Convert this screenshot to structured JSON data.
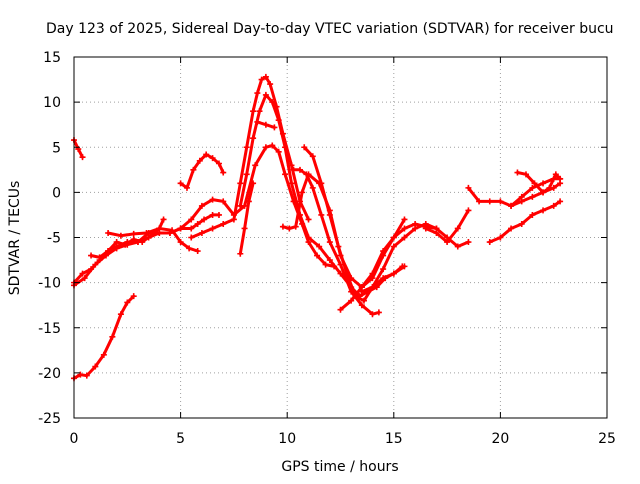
{
  "chart_data": {
    "type": "line",
    "title": "Day 123 of 2025, Sidereal Day-to-day VTEC variation (SDTVAR) for receiver bucu",
    "xlabel": "GPS time / hours",
    "ylabel": "SDTVAR / TECUs",
    "xlim": [
      0,
      25
    ],
    "ylim": [
      -25,
      15
    ],
    "xticks": [
      0,
      5,
      10,
      15,
      20,
      25
    ],
    "yticks": [
      15,
      10,
      5,
      0,
      -5,
      -10,
      -15,
      -20,
      -25
    ],
    "grid": true,
    "color": "#ff0000",
    "series": [
      {
        "name": "s1",
        "x": [
          0.0,
          0.2,
          0.4
        ],
        "y": [
          5.8,
          4.8,
          3.9
        ]
      },
      {
        "name": "s2",
        "x": [
          0.0,
          0.3,
          0.6,
          1.0,
          1.4,
          1.8,
          2.2,
          2.5,
          2.8
        ],
        "y": [
          -20.6,
          -20.2,
          -20.3,
          -19.3,
          -18.0,
          -16.0,
          -13.5,
          -12.2,
          -11.5
        ]
      },
      {
        "name": "s3",
        "x": [
          0.0,
          0.4,
          0.8,
          1.2,
          1.6,
          2.0,
          2.5,
          3.0,
          3.5,
          4.0,
          4.5,
          5.0,
          5.5,
          5.8,
          6.1,
          6.5,
          6.8
        ],
        "y": [
          -10.0,
          -9.0,
          -8.5,
          -7.5,
          -6.5,
          -6.0,
          -5.5,
          -5.5,
          -4.5,
          -4.5,
          -4.5,
          -4.0,
          -4.0,
          -3.5,
          -3.0,
          -2.5,
          -2.5
        ]
      },
      {
        "name": "s4",
        "x": [
          0.0,
          0.5,
          1.0,
          1.5,
          2.0,
          2.5,
          3.0,
          3.5,
          4.0
        ],
        "y": [
          -10.3,
          -9.5,
          -8.0,
          -7.0,
          -6.2,
          -5.8,
          -5.5,
          -5.0,
          -4.5
        ]
      },
      {
        "name": "s5",
        "x": [
          0.8,
          1.2,
          1.6,
          2.0,
          2.4,
          2.8,
          3.2,
          3.6,
          4.0,
          4.2
        ],
        "y": [
          -7.0,
          -7.2,
          -6.5,
          -5.5,
          -5.8,
          -5.2,
          -5.5,
          -4.8,
          -4.0,
          -3.0
        ]
      },
      {
        "name": "s6",
        "x": [
          1.6,
          2.2,
          2.8,
          3.4,
          4.0,
          4.6,
          5.0,
          5.4,
          5.8
        ],
        "y": [
          -4.5,
          -4.8,
          -4.6,
          -4.5,
          -4.0,
          -4.2,
          -5.5,
          -6.2,
          -6.5
        ]
      },
      {
        "name": "s7",
        "x": [
          5.0,
          5.3,
          5.6,
          5.9,
          6.2,
          6.5,
          6.8,
          7.0
        ],
        "y": [
          1.0,
          0.5,
          2.5,
          3.5,
          4.2,
          3.8,
          3.2,
          2.2
        ]
      },
      {
        "name": "s8",
        "x": [
          4.5,
          5.0,
          5.5,
          6.0,
          6.5,
          7.0,
          7.5,
          8.0,
          8.5,
          9.0,
          9.3,
          9.6,
          9.9,
          10.3,
          10.7,
          11.0,
          11.4,
          11.8,
          12.2
        ],
        "y": [
          -4.5,
          -4.0,
          -3.0,
          -1.5,
          -0.8,
          -1.0,
          -2.5,
          -1.5,
          3.0,
          5.0,
          5.2,
          4.5,
          2.0,
          -1.0,
          -3.5,
          -5.5,
          -7.0,
          -8.0,
          -8.2
        ]
      },
      {
        "name": "s9",
        "x": [
          5.5,
          6.0,
          6.5,
          7.0,
          7.5,
          7.8,
          8.1,
          8.4,
          8.6,
          8.8,
          9.0,
          9.2,
          9.5,
          9.8,
          10.2,
          10.6,
          11.0
        ],
        "y": [
          -5.0,
          -4.5,
          -4.0,
          -3.5,
          -3.0,
          1.0,
          5.0,
          9.0,
          11.0,
          12.5,
          12.8,
          12.0,
          9.5,
          6.5,
          3.0,
          -1.0,
          -3.0
        ]
      },
      {
        "name": "s10",
        "x": [
          7.8,
          8.1,
          8.4,
          8.7,
          9.0,
          9.3,
          9.6,
          9.9,
          10.2,
          10.6,
          11.0,
          11.5,
          12.0,
          12.5,
          13.0,
          13.4,
          13.8,
          14.2,
          14.6,
          15.0,
          15.4
        ],
        "y": [
          -1.5,
          2.0,
          6.0,
          9.0,
          10.8,
          10.0,
          8.0,
          5.0,
          1.0,
          -2.5,
          -5.0,
          -6.0,
          -7.5,
          -9.0,
          -10.5,
          -11.5,
          -11.0,
          -10.5,
          -9.5,
          -9.0,
          -8.2
        ]
      },
      {
        "name": "s11",
        "x": [
          7.8,
          8.0,
          8.2,
          8.4
        ],
        "y": [
          -6.8,
          -4.0,
          -1.0,
          1.0
        ]
      },
      {
        "name": "s12",
        "x": [
          8.6,
          9.0,
          9.4
        ],
        "y": [
          7.8,
          7.5,
          7.2
        ]
      },
      {
        "name": "s13",
        "x": [
          9.8,
          10.1,
          10.4,
          10.7,
          11.0,
          11.5,
          12.0,
          12.5,
          13.0,
          13.5,
          14.0,
          14.5,
          15.0,
          15.5,
          16.0,
          16.5,
          17.0
        ],
        "y": [
          -3.8,
          -4.0,
          -3.8,
          0.0,
          2.0,
          1.0,
          -2.0,
          -7.0,
          -9.5,
          -10.5,
          -9.0,
          -6.5,
          -5.0,
          -4.0,
          -3.5,
          -3.8,
          -4.0
        ]
      },
      {
        "name": "s14",
        "x": [
          10.3,
          10.6,
          10.9,
          11.2,
          11.6,
          12.0,
          12.5,
          13.0,
          13.5,
          14.0,
          14.3
        ],
        "y": [
          2.5,
          2.5,
          2.0,
          0.5,
          -2.5,
          -5.5,
          -8.0,
          -11.0,
          -12.5,
          -13.5,
          -13.3
        ]
      },
      {
        "name": "s15",
        "x": [
          10.8,
          11.2,
          11.6,
          12.0,
          12.4,
          12.8,
          13.2,
          13.6,
          14.0,
          14.5,
          15.0,
          15.5,
          16.0,
          16.5,
          17.0,
          17.5,
          18.0,
          18.5
        ],
        "y": [
          5.0,
          4.0,
          1.0,
          -2.5,
          -6.0,
          -9.0,
          -11.5,
          -12.0,
          -10.5,
          -8.5,
          -6.0,
          -5.0,
          -4.0,
          -3.5,
          -4.0,
          -5.0,
          -6.0,
          -5.5
        ]
      },
      {
        "name": "s16",
        "x": [
          12.5,
          13.0,
          13.5,
          14.0,
          14.5,
          15.0,
          15.5
        ],
        "y": [
          -13.0,
          -12.0,
          -10.5,
          -9.5,
          -7.0,
          -5.0,
          -3.0
        ]
      },
      {
        "name": "s17",
        "x": [
          13.5,
          14.0,
          14.5,
          15.0,
          15.5
        ],
        "y": [
          -11.0,
          -10.5,
          -9.5,
          -9.0,
          -8.2
        ]
      },
      {
        "name": "s18",
        "x": [
          16.5,
          17.0,
          17.5,
          18.0,
          18.5
        ],
        "y": [
          -4.0,
          -4.5,
          -5.5,
          -4.0,
          -2.0
        ]
      },
      {
        "name": "s19",
        "x": [
          18.5,
          19.0,
          19.5,
          20.0,
          20.5,
          21.0,
          21.5,
          22.0,
          22.5,
          22.8
        ],
        "y": [
          0.5,
          -1.0,
          -1.0,
          -1.0,
          -1.5,
          -0.5,
          0.5,
          1.0,
          1.5,
          1.5
        ]
      },
      {
        "name": "s20",
        "x": [
          19.5,
          20.0,
          20.5,
          21.0,
          21.5,
          22.0,
          22.5,
          22.8
        ],
        "y": [
          -5.5,
          -5.0,
          -4.0,
          -3.5,
          -2.5,
          -2.0,
          -1.5,
          -1.0
        ]
      },
      {
        "name": "s21",
        "x": [
          20.5,
          21.0,
          21.5,
          22.0,
          22.5,
          22.8
        ],
        "y": [
          -1.5,
          -1.0,
          -0.5,
          0.0,
          0.5,
          1.0
        ]
      },
      {
        "name": "s22",
        "x": [
          20.8,
          21.2,
          21.6,
          22.0,
          22.3,
          22.6,
          22.8
        ],
        "y": [
          2.2,
          2.0,
          1.0,
          0.0,
          0.5,
          2.0,
          1.5
        ]
      }
    ]
  }
}
